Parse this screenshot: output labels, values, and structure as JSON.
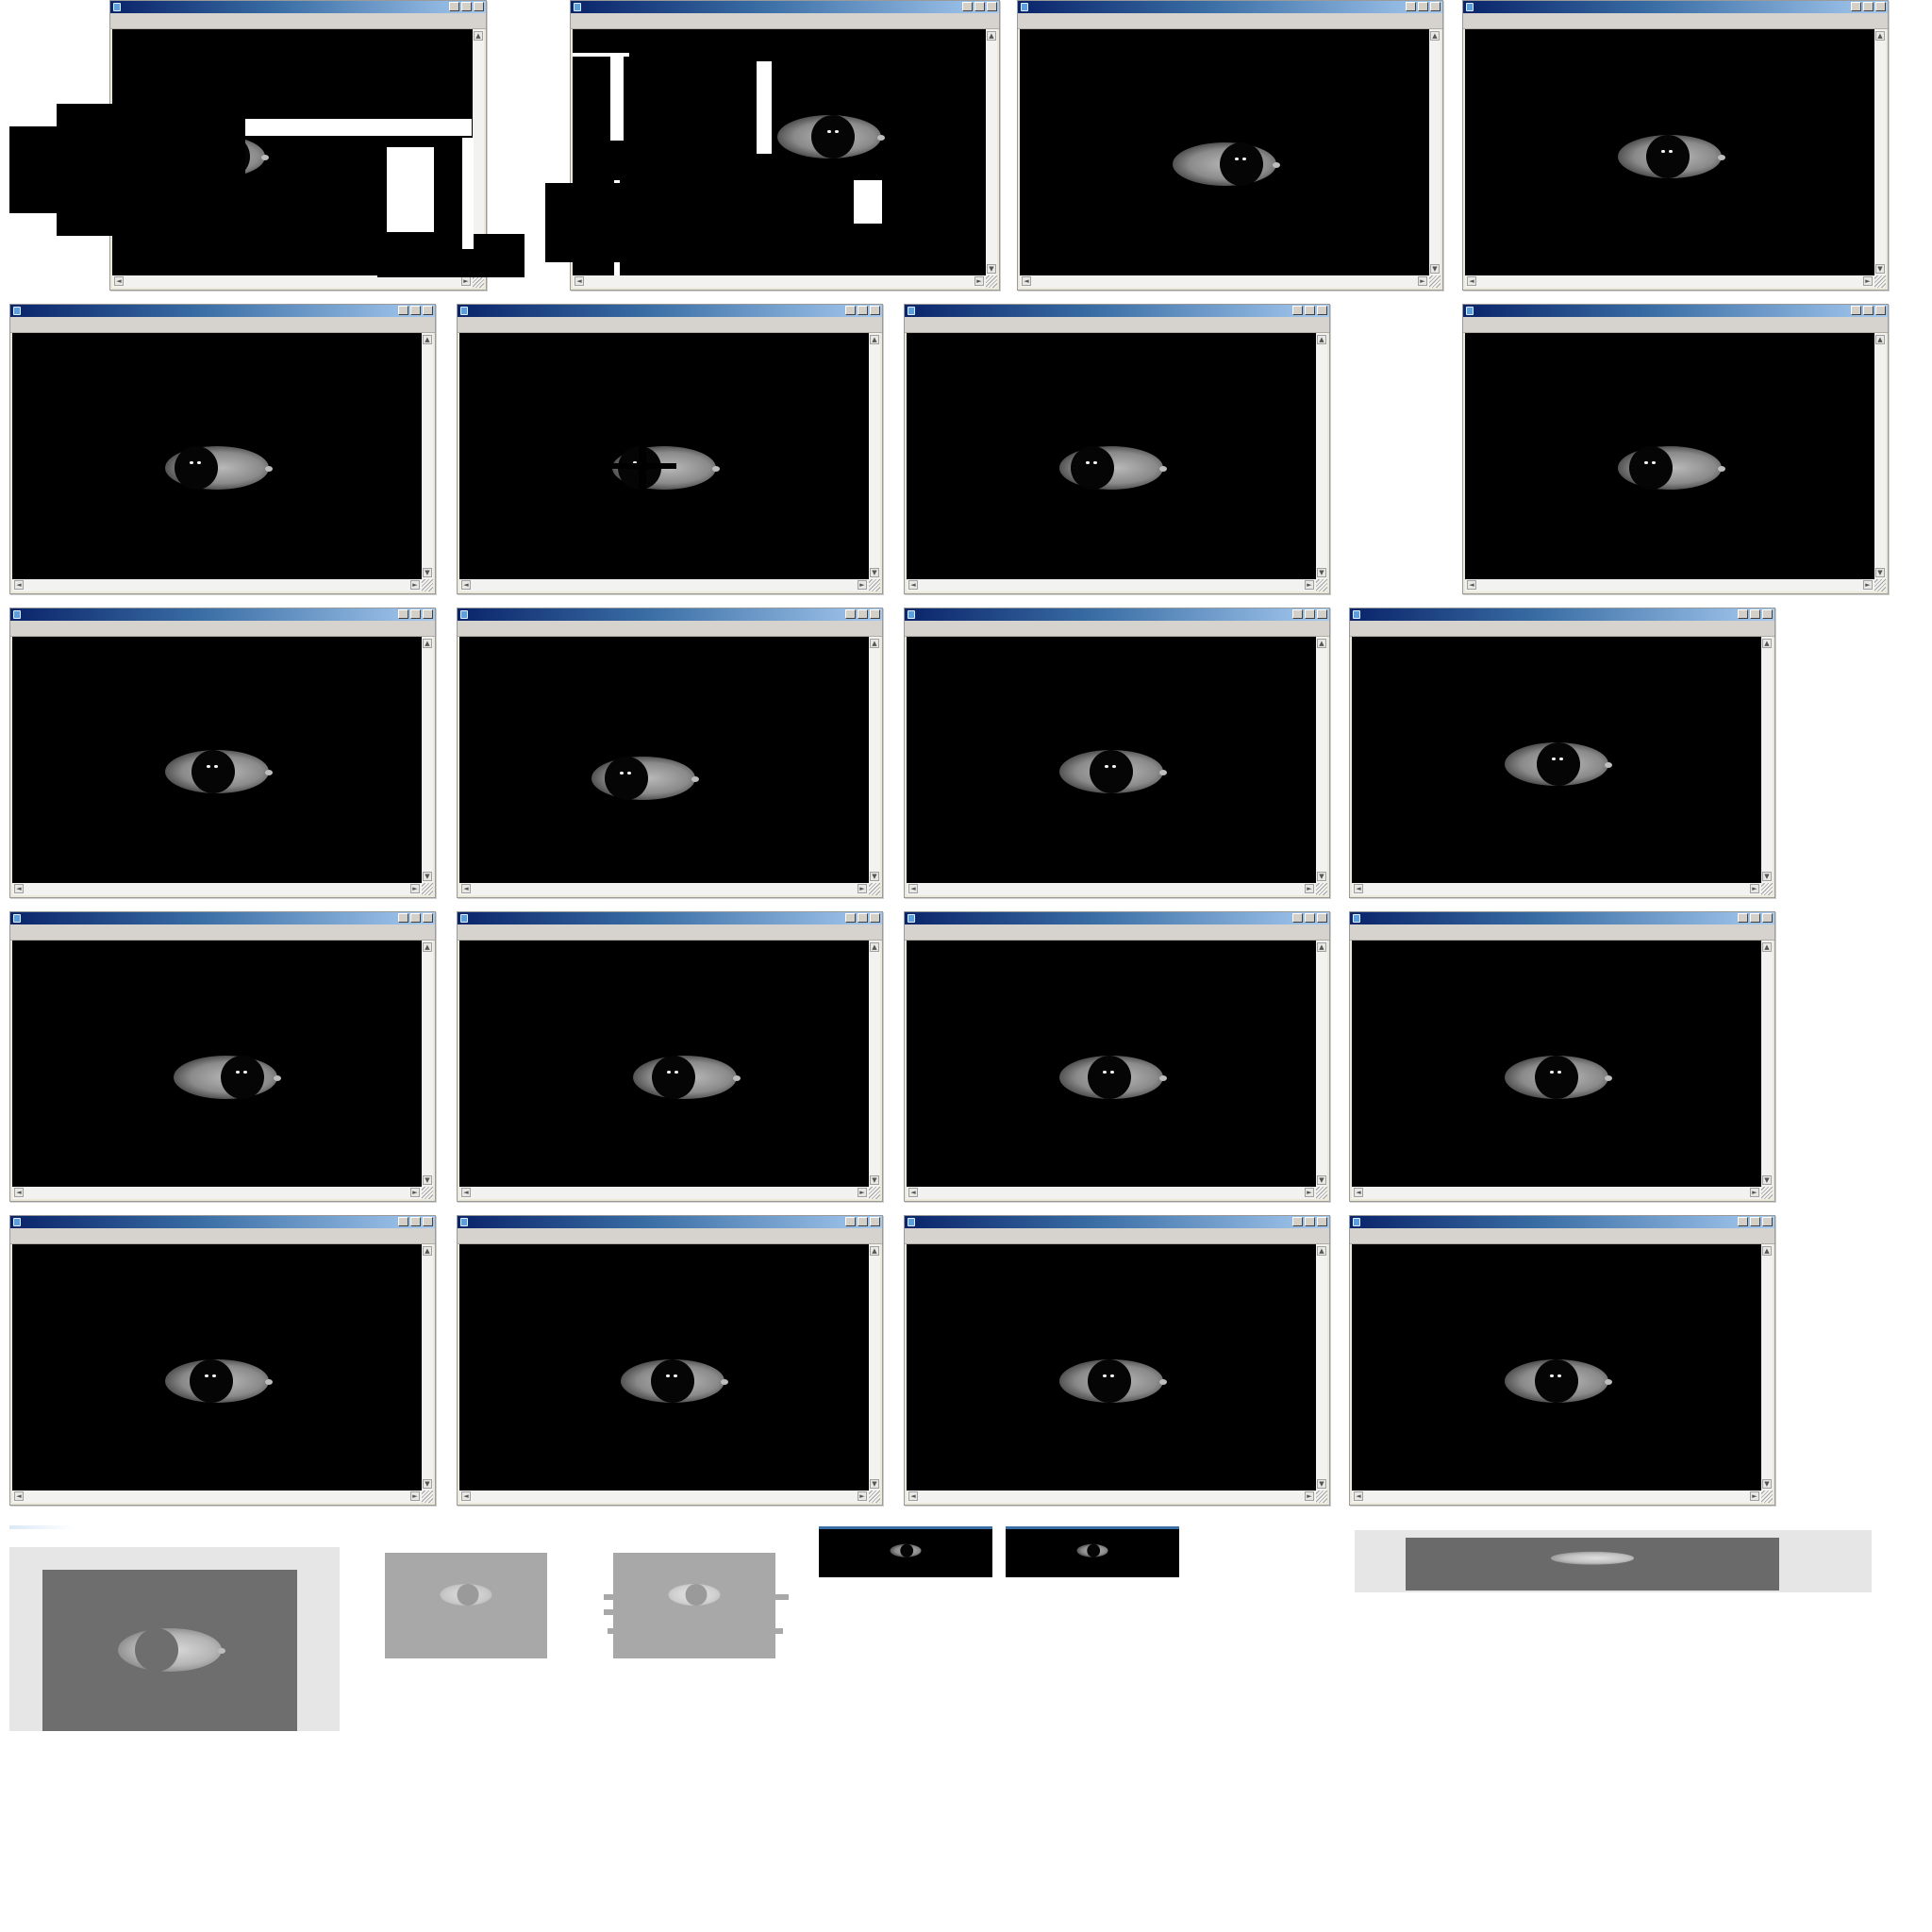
{
  "viewer": {
    "window_count": 22,
    "window_controls": [
      "minimize",
      "maximize",
      "close"
    ],
    "scroll_arrows": {
      "up": "▲",
      "down": "▼",
      "left": "◄",
      "right": "►"
    }
  },
  "colors": {
    "titlebar_start": "#0a246a",
    "titlebar_end": "#a6caf0",
    "viewport_bg": "#000000",
    "frame_bg": "#ece9d8",
    "gray_panel": "#6e6e6e",
    "light_panel": "#e6e6e6"
  },
  "icons": [
    "app-icon",
    "minimize-icon",
    "maximize-icon",
    "close-icon",
    "scroll-up-icon",
    "scroll-down-icon",
    "scroll-left-icon",
    "scroll-right-icon",
    "resize-grip-icon"
  ]
}
